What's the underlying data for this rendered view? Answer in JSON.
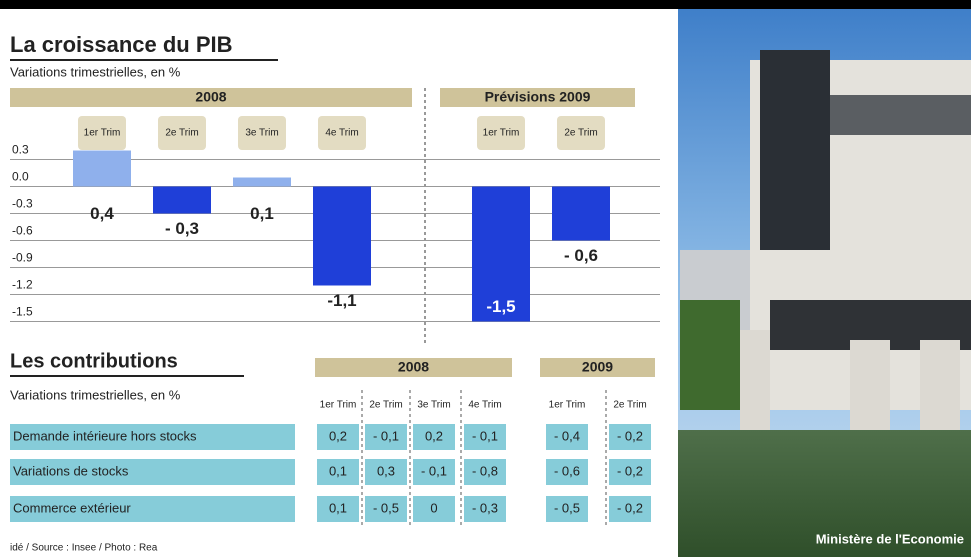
{
  "header": {
    "title": "La croissance du PIB",
    "subtitle": "Variations trimestrielles, en %"
  },
  "chart_data": {
    "type": "bar",
    "groups": [
      {
        "name": "2008",
        "categories": [
          "1er Trim",
          "2e Trim",
          "3e Trim",
          "4e Trim"
        ],
        "values": [
          0.4,
          -0.3,
          0.1,
          -1.1
        ],
        "value_labels": [
          "0,4",
          "- 0,3",
          "0,1",
          "-1,1"
        ]
      },
      {
        "name": "Prévisions 2009",
        "categories": [
          "1er Trim",
          "2e Trim"
        ],
        "values": [
          -1.5,
          -0.6
        ],
        "value_labels": [
          "-1,5",
          "- 0,6"
        ]
      }
    ],
    "colors": {
      "positive": "#8fb0ec",
      "negative": "#1f3fd8"
    },
    "ylim": [
      -1.65,
      0.45
    ],
    "yticks": [
      0.3,
      {
        "value": 0,
        "label": "0.0"
      },
      -0.3,
      -0.6,
      -0.9,
      -1.2,
      -1.5
    ],
    "grid": true
  },
  "contributions": {
    "title": "Les contributions",
    "subtitle": "Variations trimestrielles, en %",
    "groups": [
      {
        "name": "2008",
        "columns": [
          "1er Trim",
          "2e Trim",
          "3e Trim",
          "4e Trim"
        ]
      },
      {
        "name": "2009",
        "columns": [
          "1er Trim",
          "2e Trim"
        ]
      }
    ],
    "rows": [
      {
        "label": "Demande intérieure hors stocks",
        "values": [
          "0,2",
          "- 0,1",
          "0,2",
          "- 0,1",
          "- 0,4",
          "- 0,2"
        ]
      },
      {
        "label": "Variations de stocks",
        "values": [
          "0,1",
          "0,3",
          "- 0,1",
          "- 0,8",
          "- 0,6",
          "- 0,2"
        ]
      },
      {
        "label": "Commerce extérieur",
        "values": [
          "0,1",
          "- 0,5",
          "0",
          "- 0,3",
          "- 0,5",
          "- 0,2"
        ]
      }
    ]
  },
  "footer": "idé / Source : Insee / Photo : Rea",
  "photo_caption": "Ministère de l'Economie"
}
